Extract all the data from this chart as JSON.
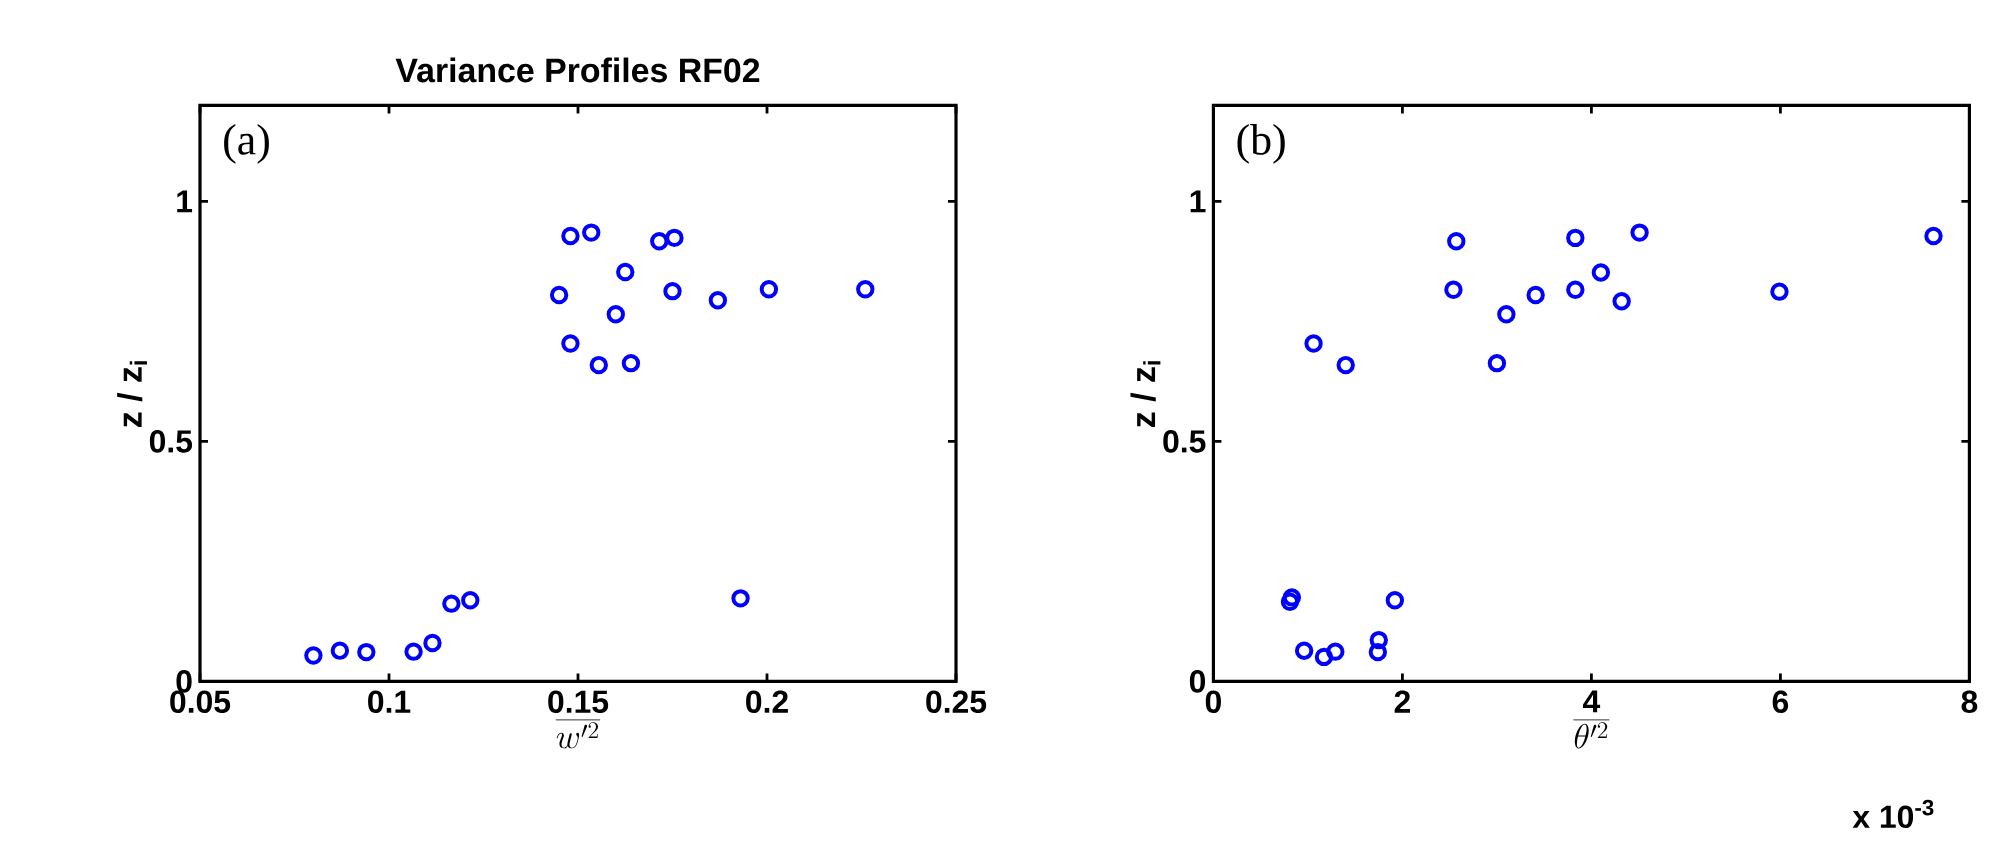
{
  "chart_data": [
    {
      "type": "scatter",
      "title": "Variance Profiles RF02",
      "xlabel": "\\overline{w'^{2}}",
      "ylabel": "z / z$_{i}$",
      "x": [
        0.08,
        0.087,
        0.094,
        0.1065,
        0.1115,
        0.1165,
        0.1215,
        0.193,
        0.145,
        0.148,
        0.1535,
        0.1625,
        0.16,
        0.148,
        0.1555,
        0.164,
        0.1715,
        0.1755,
        0.175,
        0.187,
        0.2005,
        0.226
      ],
      "values": [
        0.054,
        0.064,
        0.061,
        0.062,
        0.08,
        0.162,
        0.169,
        0.173,
        0.805,
        0.928,
        0.935,
        0.853,
        0.765,
        0.704,
        0.659,
        0.663,
        0.917,
        0.924,
        0.813,
        0.794,
        0.817,
        0.817
      ],
      "color": "#0000ff",
      "marker": "circle",
      "xlim": [
        0.05,
        0.25
      ],
      "xticks": [
        0.05,
        0.1,
        0.15,
        0.2,
        0.25
      ],
      "ylim": [
        0,
        1.2
      ],
      "yticks": [
        0,
        0.5,
        1
      ],
      "annotations": [
        "(a)"
      ]
    },
    {
      "type": "scatter",
      "xlabel": "\\overline{\\theta'^{2}}",
      "ylabel": "z / z$_{i}$",
      "x": [
        0.81,
        0.83,
        0.96,
        1.17,
        1.29,
        1.06,
        1.4,
        1.74,
        1.75,
        1.92,
        2.57,
        2.54,
        3.0,
        3.1,
        3.41,
        3.83,
        3.83,
        4.1,
        4.32,
        4.51,
        5.99,
        7.62
      ],
      "values": [
        0.166,
        0.175,
        0.064,
        0.051,
        0.062,
        0.704,
        0.659,
        0.061,
        0.086,
        0.169,
        0.917,
        0.816,
        0.663,
        0.765,
        0.805,
        0.924,
        0.816,
        0.852,
        0.792,
        0.935,
        0.812,
        0.928
      ],
      "color": "#0000ff",
      "marker": "circle",
      "xlim": [
        0,
        8
      ],
      "xticks": [
        0,
        2,
        4,
        6,
        8
      ],
      "ylim": [
        0,
        1.2
      ],
      "yticks": [
        0,
        0.5,
        1
      ],
      "annotations": [
        "(b)",
        "x 10$^{-3}$"
      ]
    }
  ]
}
